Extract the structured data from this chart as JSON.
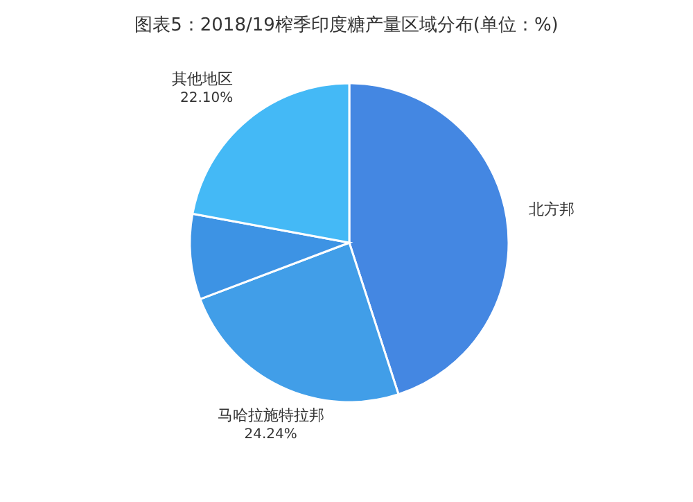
{
  "chart_data": {
    "type": "pie",
    "title": "图表5：2018/19榨季印度糖产量区域分布(单位：%)",
    "categories": [
      "北方邦",
      "马哈拉施特拉邦",
      null,
      "其他地区"
    ],
    "values": [
      45.0,
      24.24,
      8.66,
      22.1
    ],
    "value_labels": [
      null,
      "24.24%",
      null,
      "22.10%"
    ],
    "colors": [
      "#4487e2",
      "#419ee8",
      "#3d93e4",
      "#44b9f6"
    ]
  }
}
